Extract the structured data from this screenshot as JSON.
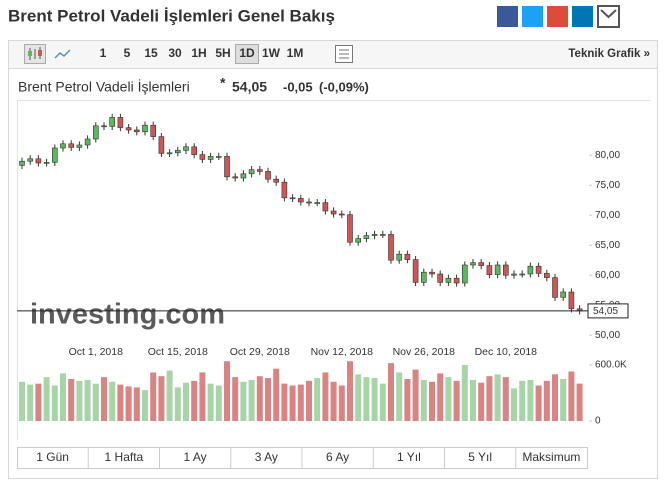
{
  "header": {
    "title": "Brent Petrol Vadeli İşlemleri Genel Bakış"
  },
  "toolbar": {
    "intervals": [
      "1",
      "5",
      "15",
      "30",
      "1H",
      "5H",
      "1D",
      "1W",
      "1M"
    ],
    "active_interval": 6,
    "link": "Teknik Grafik »"
  },
  "quote": {
    "name": "Brent Petrol Vadeli İşlemleri",
    "marker": "*",
    "change": "-0,05",
    "change_percent": "(-0,09%)"
  },
  "chart_data": {
    "type": "candlestick",
    "watermark": "investing.com",
    "categories": [
      null,
      null,
      null,
      null,
      null,
      null,
      null,
      null,
      null,
      "Oct 1, 2018",
      null,
      null,
      null,
      null,
      null,
      null,
      null,
      null,
      null,
      "Oct 15, 2018",
      null,
      null,
      null,
      null,
      null,
      null,
      null,
      null,
      null,
      "Oct 29, 2018",
      null,
      null,
      null,
      null,
      null,
      null,
      null,
      null,
      null,
      "Nov 12, 2018",
      null,
      null,
      null,
      null,
      null,
      null,
      null,
      null,
      null,
      "Nov 26, 2018",
      null,
      null,
      null,
      null,
      null,
      null,
      null,
      null,
      null,
      "Dec 10, 2018",
      null,
      null,
      null,
      null,
      null,
      null,
      null,
      null,
      null
    ],
    "open": [
      78.3,
      79.0,
      79.4,
      78.7,
      78.8,
      81.2,
      81.9,
      81.3,
      81.7,
      82.7,
      84.9,
      84.8,
      86.3,
      84.6,
      84.2,
      83.9,
      85.0,
      83.1,
      80.3,
      80.4,
      80.8,
      81.4,
      80.1,
      79.3,
      79.8,
      79.8,
      76.4,
      76.2,
      76.9,
      77.6,
      77.3,
      76.0,
      75.5,
      72.9,
      72.8,
      72.2,
      72.1,
      72.1,
      70.7,
      70.2,
      70.1,
      65.5,
      66.1,
      66.6,
      66.8,
      66.8,
      62.5,
      63.5,
      62.6,
      58.8,
      60.5,
      60.2,
      58.8,
      59.5,
      58.7,
      61.7,
      62.1,
      61.6,
      60.1,
      61.7,
      60.0,
      60.2,
      60.2,
      61.5,
      60.3,
      59.6,
      56.3,
      57.2,
      54.4
    ],
    "close": [
      79.0,
      79.4,
      78.7,
      78.8,
      81.2,
      81.9,
      81.3,
      81.7,
      82.7,
      84.9,
      84.8,
      86.3,
      84.6,
      84.2,
      83.9,
      85.0,
      83.1,
      80.3,
      80.4,
      80.8,
      81.4,
      80.1,
      79.3,
      79.8,
      79.8,
      76.4,
      76.2,
      76.9,
      77.6,
      77.3,
      76.0,
      75.5,
      72.9,
      72.8,
      72.2,
      72.1,
      72.1,
      70.7,
      70.2,
      70.1,
      65.5,
      66.1,
      66.6,
      66.8,
      66.8,
      62.5,
      63.5,
      62.6,
      58.8,
      60.5,
      60.2,
      58.8,
      59.5,
      58.7,
      61.7,
      62.1,
      61.6,
      60.1,
      61.7,
      60.0,
      60.2,
      60.2,
      61.5,
      60.3,
      59.6,
      56.3,
      57.2,
      54.4,
      54.05
    ],
    "high": [
      79.6,
      80.0,
      80.0,
      79.4,
      81.8,
      82.5,
      82.5,
      82.3,
      83.3,
      85.5,
      85.5,
      86.9,
      86.9,
      85.2,
      84.8,
      85.6,
      85.6,
      83.7,
      81.0,
      81.4,
      82.0,
      82.0,
      80.7,
      80.4,
      80.4,
      80.4,
      77.0,
      77.5,
      78.2,
      78.2,
      77.9,
      76.6,
      76.1,
      73.5,
      73.4,
      72.8,
      72.7,
      72.7,
      71.3,
      70.8,
      70.7,
      66.7,
      67.2,
      67.4,
      67.4,
      67.4,
      64.1,
      64.1,
      63.2,
      61.1,
      61.1,
      60.8,
      60.1,
      60.1,
      62.3,
      62.7,
      62.7,
      62.2,
      62.3,
      62.3,
      60.8,
      60.8,
      62.1,
      62.1,
      60.9,
      60.2,
      57.8,
      57.8,
      55.0
    ],
    "low": [
      77.7,
      78.4,
      78.1,
      78.1,
      78.2,
      80.6,
      80.7,
      80.7,
      81.1,
      82.1,
      84.2,
      84.2,
      84.0,
      83.6,
      83.3,
      83.3,
      82.5,
      79.7,
      79.7,
      79.8,
      80.2,
      79.5,
      78.7,
      78.7,
      79.2,
      75.8,
      75.6,
      75.6,
      76.3,
      76.7,
      75.4,
      74.9,
      72.3,
      72.2,
      71.6,
      71.5,
      71.5,
      70.1,
      69.6,
      69.5,
      64.9,
      64.9,
      65.5,
      66.0,
      66.2,
      61.9,
      61.9,
      62.0,
      58.2,
      58.2,
      59.6,
      58.2,
      58.2,
      58.1,
      58.1,
      61.1,
      61.0,
      59.5,
      59.5,
      59.4,
      59.4,
      59.6,
      59.6,
      59.7,
      59.0,
      55.7,
      55.7,
      53.8,
      53.45
    ],
    "volume": [
      420000,
      390000,
      400000,
      470000,
      380000,
      510000,
      450000,
      430000,
      440000,
      400000,
      470000,
      420000,
      390000,
      370000,
      360000,
      330000,
      520000,
      480000,
      540000,
      360000,
      410000,
      430000,
      520000,
      400000,
      380000,
      640000,
      470000,
      420000,
      440000,
      480000,
      460000,
      560000,
      400000,
      380000,
      390000,
      430000,
      460000,
      520000,
      420000,
      380000,
      640000,
      500000,
      470000,
      460000,
      400000,
      620000,
      520000,
      450000,
      550000,
      440000,
      420000,
      510000,
      470000,
      430000,
      600000,
      440000,
      410000,
      480000,
      500000,
      470000,
      350000,
      430000,
      440000,
      380000,
      430000,
      500000,
      450000,
      530000,
      400000
    ],
    "ylim": [
      49.2,
      88.7
    ],
    "yticks": [
      {
        "value": 50,
        "label": "50,00"
      },
      {
        "value": 55,
        "label": "55,00"
      },
      {
        "value": 60,
        "label": "60,00"
      },
      {
        "value": 65,
        "label": "65,00"
      },
      {
        "value": 70,
        "label": "70,00"
      },
      {
        "value": 75,
        "label": "75,00"
      },
      {
        "value": 80,
        "label": "80,00"
      }
    ],
    "volume_lim": [
      0,
      707000
    ],
    "volume_ticks": [
      0,
      {
        "value": 600000,
        "label": "600.0K"
      }
    ],
    "last_price": {
      "value": 54.05,
      "label": "54,05"
    },
    "up_color": "#5cb85c",
    "down_color": "#d05555",
    "volume_up_color": "#a8d5a8",
    "volume_down_color": "#d98383"
  },
  "ranges": [
    "1 Gün",
    "1 Hafta",
    "1 Ay",
    "3 Ay",
    "6 Ay",
    "1 Yıl",
    "5 Yıl",
    "Maksimum"
  ]
}
